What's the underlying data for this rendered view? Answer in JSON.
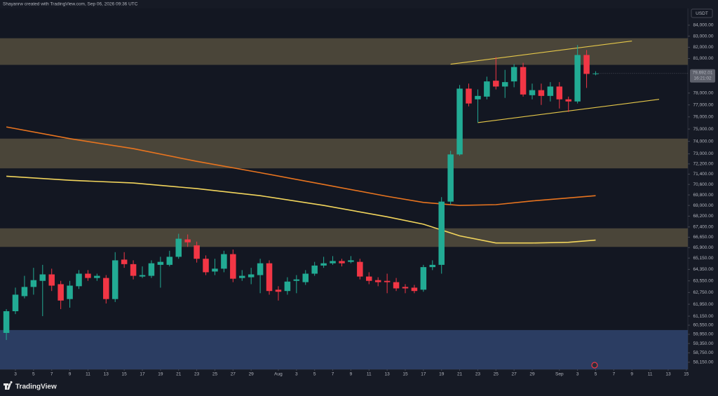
{
  "chart_data": {
    "type": "candlestick",
    "header": "Shayanrw created with TradingView.com, Sep 06, 2026 09:36 UTC",
    "brand": "TradingView",
    "currency": "USDT",
    "log_scale": true,
    "grid": false,
    "up_color": "#22ab94",
    "down_color": "#f23645",
    "x": [
      "Jul 2",
      "Jul 3",
      "Jul 4",
      "Jul 5",
      "Jul 6",
      "Jul 7",
      "Jul 8",
      "Jul 9",
      "Jul 10",
      "Jul 11",
      "Jul 12",
      "Jul 13",
      "Jul 14",
      "Jul 15",
      "Jul 16",
      "Jul 17",
      "Jul 18",
      "Jul 19",
      "Jul 20",
      "Jul 21",
      "Jul 22",
      "Jul 23",
      "Jul 24",
      "Jul 25",
      "Jul 26",
      "Jul 27",
      "Jul 28",
      "Jul 29",
      "Jul 30",
      "Jul 31",
      "Aug 1",
      "Aug 2",
      "Aug 3",
      "Aug 4",
      "Aug 5",
      "Aug 6",
      "Aug 7",
      "Aug 8",
      "Aug 9",
      "Aug 10",
      "Aug 11",
      "Aug 12",
      "Aug 13",
      "Aug 14",
      "Aug 15",
      "Aug 16",
      "Aug 17",
      "Aug 18",
      "Aug 19",
      "Aug 20",
      "Aug 21",
      "Aug 22",
      "Aug 23",
      "Aug 24",
      "Aug 25",
      "Aug 26",
      "Aug 27",
      "Aug 28",
      "Aug 29",
      "Aug 30",
      "Aug 31",
      "Sep 1",
      "Sep 2",
      "Sep 3",
      "Sep 4",
      "Sep 5"
    ],
    "open": [
      60040,
      61480,
      62500,
      63130,
      63550,
      64000,
      63320,
      62300,
      63180,
      64050,
      63750,
      63750,
      62300,
      65040,
      64720,
      63850,
      63900,
      64670,
      64670,
      65240,
      66490,
      66060,
      65100,
      64200,
      64400,
      65430,
      63750,
      63800,
      63950,
      64780,
      62940,
      62850,
      63550,
      63460,
      64050,
      64620,
      64780,
      64940,
      64880,
      64880,
      63850,
      63600,
      63550,
      63460,
      63130,
      63080,
      62940,
      64510,
      64670,
      69290,
      72950,
      78380,
      77470,
      77700,
      79060,
      78560,
      79000,
      80250,
      77820,
      78250,
      77760,
      78560,
      77470,
      77290,
      81310,
      79650
    ],
    "high": [
      61620,
      63080,
      63900,
      64460,
      64670,
      64400,
      63550,
      63550,
      64300,
      64300,
      64050,
      63950,
      65570,
      65570,
      64990,
      64560,
      64990,
      65240,
      65670,
      66900,
      66850,
      66330,
      65340,
      65100,
      65670,
      65760,
      64300,
      64460,
      65100,
      64990,
      63180,
      63800,
      63950,
      64300,
      64880,
      65240,
      65290,
      65100,
      65290,
      65100,
      64150,
      63800,
      64050,
      63750,
      63320,
      63270,
      64670,
      64990,
      69630,
      73240,
      78690,
      78810,
      78310,
      79410,
      81120,
      80000,
      80500,
      80620,
      78810,
      78810,
      78940,
      78940,
      77700,
      82190,
      81750,
      79880
    ],
    "low": [
      59580,
      61290,
      62350,
      62600,
      61150,
      62850,
      61620,
      61720,
      62990,
      63550,
      63550,
      62000,
      62100,
      64460,
      63650,
      63750,
      63750,
      63080,
      64560,
      65100,
      65950,
      64830,
      63950,
      63950,
      64150,
      63460,
      63550,
      63320,
      62700,
      62600,
      62200,
      62600,
      62700,
      63270,
      63900,
      64460,
      64670,
      64560,
      64780,
      63650,
      63320,
      63180,
      62700,
      62850,
      62700,
      62700,
      62800,
      64300,
      64050,
      69060,
      72850,
      76880,
      75530,
      77470,
      78310,
      77590,
      78500,
      77700,
      77470,
      77000,
      77290,
      76700,
      76410,
      77120,
      78440,
      79530
    ],
    "close": [
      61480,
      62600,
      63130,
      63600,
      64000,
      63220,
      62200,
      63220,
      64050,
      63750,
      63900,
      62300,
      64990,
      64720,
      63900,
      63950,
      64780,
      64880,
      65240,
      66540,
      66280,
      65100,
      64150,
      64400,
      65430,
      63700,
      63900,
      64000,
      64780,
      62850,
      62800,
      63500,
      63650,
      64050,
      64620,
      64780,
      64940,
      64780,
      64990,
      63850,
      63550,
      63460,
      63460,
      63030,
      63030,
      62850,
      64510,
      64670,
      69290,
      72950,
      78380,
      77120,
      77760,
      79000,
      78560,
      78940,
      80250,
      77880,
      78250,
      77760,
      78560,
      77470,
      77290,
      81310,
      79650,
      79692.01
    ],
    "last_price": {
      "value": 79692.01,
      "label": "79,692.01"
    },
    "countdown": "16:21:02",
    "zones": [
      {
        "from": 80440,
        "to": 82810,
        "color": "#4a4539"
      },
      {
        "from": 71850,
        "to": 74220,
        "color": "#4a4539"
      },
      {
        "from": 65950,
        "to": 67300,
        "color": "#4a4539"
      },
      {
        "from": 57700,
        "to": 60230,
        "color": "#2b3d62"
      }
    ],
    "lines": [
      {
        "color": "#e8741f",
        "x": [
          "Jul 2",
          "Jul 9",
          "Jul 16",
          "Jul 23",
          "Jul 30",
          "Aug 6",
          "Aug 13",
          "Aug 17",
          "Aug 21",
          "Aug 25",
          "Aug 29",
          "Sep 2",
          "Sep 5"
        ],
        "values": [
          75170,
          74220,
          73410,
          72400,
          71510,
          70600,
          69690,
          69230,
          69000,
          69060,
          69340,
          69570,
          69740
        ]
      },
      {
        "color": "#f2d55c",
        "x": [
          "Jul 2",
          "Jul 9",
          "Jul 16",
          "Jul 23",
          "Jul 30",
          "Aug 6",
          "Aug 13",
          "Aug 17",
          "Aug 21",
          "Aug 25",
          "Aug 29",
          "Sep 2",
          "Sep 5"
        ],
        "values": [
          71240,
          70920,
          70710,
          70280,
          69740,
          69000,
          68150,
          67600,
          66750,
          66230,
          66230,
          66280,
          66440
        ]
      }
    ],
    "trendlines": [
      {
        "color": "#e6c84a",
        "x": [
          "Aug 20",
          "Sep 9"
        ],
        "values": [
          80500,
          82560
        ]
      },
      {
        "color": "#e6c84a",
        "x": [
          "Aug 23",
          "Sep 12"
        ],
        "values": [
          75530,
          77470
        ]
      }
    ],
    "ylim": [
      57700,
      85550
    ],
    "yticks": [
      {
        "value": 84000,
        "label": "84,000.00"
      },
      {
        "value": 83000,
        "label": "83,000.00"
      },
      {
        "value": 82000,
        "label": "82,000.00"
      },
      {
        "value": 81000,
        "label": "81,000.00"
      },
      {
        "value": 78000,
        "label": "78,000.00"
      },
      {
        "value": 77000,
        "label": "77,000.00"
      },
      {
        "value": 76000,
        "label": "76,000.00"
      },
      {
        "value": 75000,
        "label": "75,000.00"
      },
      {
        "value": 74000,
        "label": "74,000.00"
      },
      {
        "value": 73000,
        "label": "73,000.00"
      },
      {
        "value": 72200,
        "label": "72,200.00"
      },
      {
        "value": 71400,
        "label": "71,400.00"
      },
      {
        "value": 70600,
        "label": "70,600.00"
      },
      {
        "value": 69800,
        "label": "69,800.00"
      },
      {
        "value": 69000,
        "label": "69,000.00"
      },
      {
        "value": 68200,
        "label": "68,200.00"
      },
      {
        "value": 67400,
        "label": "67,400.00"
      },
      {
        "value": 66650,
        "label": "66,650.00"
      },
      {
        "value": 65900,
        "label": "65,900.00"
      },
      {
        "value": 65150,
        "label": "65,150.00"
      },
      {
        "value": 64350,
        "label": "64,350.00"
      },
      {
        "value": 63550,
        "label": "63,550.00"
      },
      {
        "value": 62750,
        "label": "62,750.00"
      },
      {
        "value": 61950,
        "label": "61,950.00"
      },
      {
        "value": 61150,
        "label": "61,150.00"
      },
      {
        "value": 60550,
        "label": "60,550.00"
      },
      {
        "value": 59950,
        "label": "59,950.00"
      },
      {
        "value": 59350,
        "label": "59,350.00"
      },
      {
        "value": 58750,
        "label": "58,750.00"
      },
      {
        "value": 58150,
        "label": "58,150.00"
      }
    ],
    "xticks": [
      {
        "value": "Jul 3",
        "label": "3"
      },
      {
        "value": "Jul 5",
        "label": "5"
      },
      {
        "value": "Jul 7",
        "label": "7"
      },
      {
        "value": "Jul 9",
        "label": "9"
      },
      {
        "value": "Jul 11",
        "label": "11"
      },
      {
        "value": "Jul 13",
        "label": "13"
      },
      {
        "value": "Jul 15",
        "label": "15"
      },
      {
        "value": "Jul 17",
        "label": "17"
      },
      {
        "value": "Jul 19",
        "label": "19"
      },
      {
        "value": "Jul 21",
        "label": "21"
      },
      {
        "value": "Jul 23",
        "label": "23"
      },
      {
        "value": "Jul 25",
        "label": "25"
      },
      {
        "value": "Jul 27",
        "label": "27"
      },
      {
        "value": "Jul 29",
        "label": "29"
      },
      {
        "value": "Aug 1",
        "label": "Aug"
      },
      {
        "value": "Aug 3",
        "label": "3"
      },
      {
        "value": "Aug 5",
        "label": "5"
      },
      {
        "value": "Aug 7",
        "label": "7"
      },
      {
        "value": "Aug 9",
        "label": "9"
      },
      {
        "value": "Aug 11",
        "label": "11"
      },
      {
        "value": "Aug 13",
        "label": "13"
      },
      {
        "value": "Aug 15",
        "label": "15"
      },
      {
        "value": "Aug 17",
        "label": "17"
      },
      {
        "value": "Aug 19",
        "label": "19"
      },
      {
        "value": "Aug 21",
        "label": "21"
      },
      {
        "value": "Aug 23",
        "label": "23"
      },
      {
        "value": "Aug 25",
        "label": "25"
      },
      {
        "value": "Aug 27",
        "label": "27"
      },
      {
        "value": "Aug 29",
        "label": "29"
      },
      {
        "value": "Sep 1",
        "label": "Sep"
      },
      {
        "value": "Sep 3",
        "label": "3"
      },
      {
        "value": "Sep 5",
        "label": "5"
      },
      {
        "value": "Sep 7",
        "label": "7"
      },
      {
        "value": "Sep 9",
        "label": "9"
      },
      {
        "value": "Sep 11",
        "label": "11"
      },
      {
        "value": "Sep 13",
        "label": "13"
      },
      {
        "value": "Sep 15",
        "label": "15"
      }
    ]
  }
}
